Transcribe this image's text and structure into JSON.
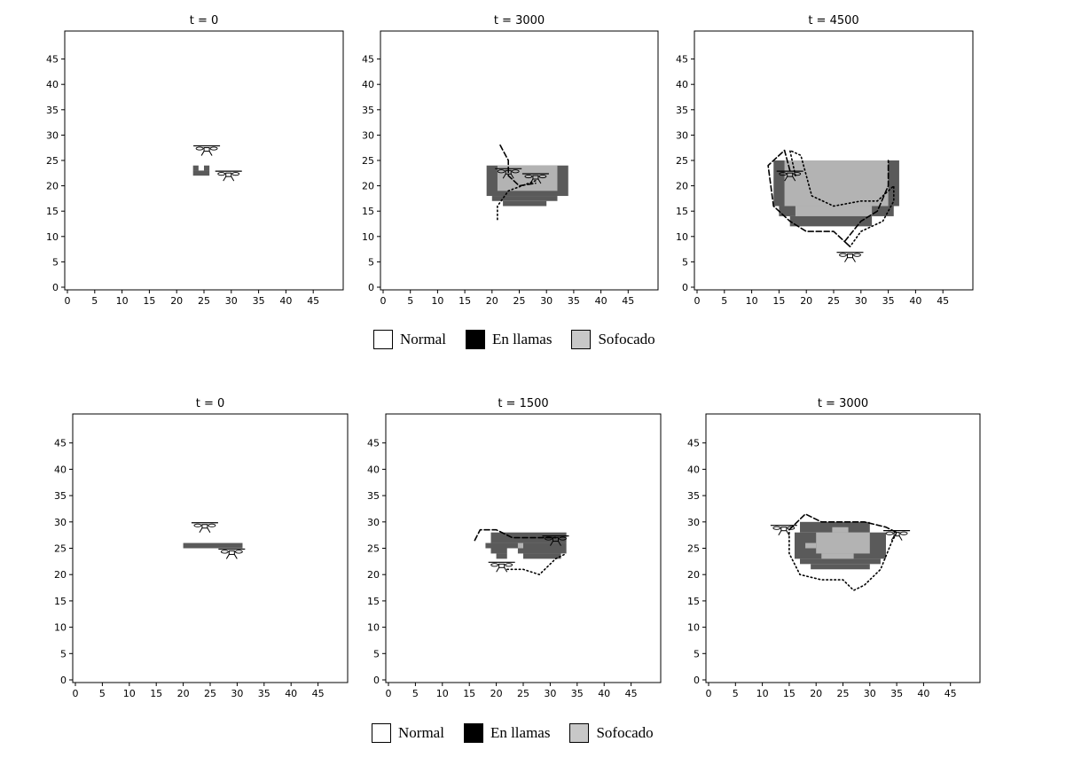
{
  "colors": {
    "burning": "#5a5a5a",
    "smothered": "#b3b3b3",
    "normal": "#ffffff",
    "legend_flame": "#000000",
    "legend_smothered": "#c8c8c8"
  },
  "legends": [
    {
      "items": [
        {
          "label": "Normal",
          "key": "normal"
        },
        {
          "label": "En llamas",
          "key": "flame"
        },
        {
          "label": "Sofocado",
          "key": "smothered"
        }
      ]
    },
    {
      "items": [
        {
          "label": "Normal",
          "key": "normal"
        },
        {
          "label": "En llamas",
          "key": "flame"
        },
        {
          "label": "Sofocado",
          "key": "smothered"
        }
      ]
    }
  ],
  "chart_data": [
    {
      "type": "heatmap",
      "title": "t = 0",
      "xlim": [
        0,
        50
      ],
      "ylim": [
        0,
        50
      ],
      "xticks": [
        0,
        5,
        10,
        15,
        20,
        25,
        30,
        35,
        40,
        45
      ],
      "yticks": [
        0,
        5,
        10,
        15,
        20,
        25,
        30,
        35,
        40,
        45
      ],
      "burning_rects": [
        [
          23,
          22,
          3,
          1
        ],
        [
          23,
          23,
          1,
          1
        ],
        [
          25,
          23,
          1,
          1
        ]
      ],
      "smothered_rects": [],
      "drones": [
        [
          25.5,
          27
        ],
        [
          29.5,
          22
        ]
      ],
      "paths": []
    },
    {
      "type": "heatmap",
      "title": "t = 3000",
      "xlim": [
        0,
        50
      ],
      "ylim": [
        0,
        50
      ],
      "xticks": [
        0,
        5,
        10,
        15,
        20,
        25,
        30,
        35,
        40,
        45
      ],
      "yticks": [
        0,
        5,
        10,
        15,
        20,
        25,
        30,
        35,
        40,
        45
      ],
      "burning_rects": [
        [
          19,
          18,
          15,
          6
        ],
        [
          20,
          17,
          12,
          1
        ],
        [
          22,
          16,
          8,
          1
        ]
      ],
      "smothered_rects": [
        [
          21,
          19,
          11,
          5
        ]
      ],
      "drones": [
        [
          23,
          22.5
        ],
        [
          28,
          21.5
        ]
      ],
      "paths": [
        {
          "style": "dashed",
          "points": [
            [
              21.5,
              28
            ],
            [
              23,
              25
            ],
            [
              23,
              22
            ],
            [
              25,
              20
            ],
            [
              28,
              20.5
            ]
          ]
        },
        {
          "style": "dotted",
          "points": [
            [
              28,
              21
            ],
            [
              23,
              19
            ],
            [
              21,
              16
            ],
            [
              21,
              13
            ]
          ]
        }
      ]
    },
    {
      "type": "heatmap",
      "title": "t = 4500",
      "xlim": [
        0,
        50
      ],
      "ylim": [
        0,
        50
      ],
      "xticks": [
        0,
        5,
        10,
        15,
        20,
        25,
        30,
        35,
        40,
        45
      ],
      "yticks": [
        0,
        5,
        10,
        15,
        20,
        25,
        30,
        35,
        40,
        45
      ],
      "burning_rects": [
        [
          14,
          16,
          23,
          9
        ],
        [
          15,
          14,
          21,
          2
        ],
        [
          17,
          12,
          15,
          2
        ]
      ],
      "smothered_rects": [
        [
          16,
          16,
          19,
          9
        ],
        [
          18,
          14,
          14,
          2
        ]
      ],
      "drones": [
        [
          17,
          22
        ],
        [
          28,
          6
        ]
      ],
      "paths": [
        {
          "style": "dashed",
          "points": [
            [
              17,
              23
            ],
            [
              16,
              27
            ],
            [
              13,
              24
            ],
            [
              14,
              16
            ],
            [
              17,
              13
            ],
            [
              20,
              11
            ],
            [
              25,
              11
            ],
            [
              28,
              8
            ],
            [
              27,
              9
            ],
            [
              30,
              13
            ],
            [
              33,
              15
            ],
            [
              35,
              20
            ],
            [
              35,
              25
            ]
          ]
        },
        {
          "style": "dotted",
          "points": [
            [
              18,
              22
            ],
            [
              17,
              27
            ],
            [
              19,
              26
            ],
            [
              20,
              22
            ],
            [
              21,
              18
            ],
            [
              25,
              16
            ],
            [
              30,
              17
            ],
            [
              33,
              17
            ],
            [
              36,
              20
            ],
            [
              36,
              17
            ],
            [
              34,
              13
            ],
            [
              30,
              11
            ],
            [
              28,
              8
            ]
          ]
        }
      ]
    },
    {
      "type": "heatmap",
      "title": "t = 0",
      "xlim": [
        0,
        50
      ],
      "ylim": [
        0,
        50
      ],
      "xticks": [
        0,
        5,
        10,
        15,
        20,
        25,
        30,
        35,
        40,
        45
      ],
      "yticks": [
        0,
        5,
        10,
        15,
        20,
        25,
        30,
        35,
        40,
        45
      ],
      "burning_rects": [
        [
          20,
          25,
          11,
          1
        ]
      ],
      "smothered_rects": [],
      "drones": [
        [
          24,
          29
        ],
        [
          29,
          24
        ]
      ],
      "paths": []
    },
    {
      "type": "heatmap",
      "title": "t = 1500",
      "xlim": [
        0,
        50
      ],
      "ylim": [
        0,
        50
      ],
      "xticks": [
        0,
        5,
        10,
        15,
        20,
        25,
        30,
        35,
        40,
        45
      ],
      "yticks": [
        0,
        5,
        10,
        15,
        20,
        25,
        30,
        35,
        40,
        45
      ],
      "burning_rects": [
        [
          19,
          26,
          14,
          2
        ],
        [
          18,
          25,
          15,
          1
        ],
        [
          19,
          24,
          3,
          1
        ],
        [
          24,
          24,
          9,
          1
        ],
        [
          20,
          23,
          2,
          1
        ],
        [
          25,
          23,
          7,
          1
        ]
      ],
      "smothered_rects": [
        [
          24,
          25,
          1,
          1
        ]
      ],
      "drones": [
        [
          21,
          21.5
        ],
        [
          31,
          26.5
        ]
      ],
      "paths": [
        {
          "style": "dashed",
          "points": [
            [
              16,
              26.5
            ],
            [
              17,
              28.5
            ],
            [
              20,
              28.5
            ],
            [
              23,
              27
            ],
            [
              28,
              27
            ],
            [
              31,
              27
            ]
          ]
        },
        {
          "style": "dotted",
          "points": [
            [
              22,
              21
            ],
            [
              25,
              21
            ],
            [
              28,
              20
            ],
            [
              29,
              21
            ],
            [
              31,
              23
            ],
            [
              33,
              24
            ]
          ]
        }
      ]
    },
    {
      "type": "heatmap",
      "title": "t = 3000",
      "xlim": [
        0,
        50
      ],
      "ylim": [
        0,
        50
      ],
      "xticks": [
        0,
        5,
        10,
        15,
        20,
        25,
        30,
        35,
        40,
        45
      ],
      "yticks": [
        0,
        5,
        10,
        15,
        20,
        25,
        30,
        35,
        40,
        45
      ],
      "burning_rects": [
        [
          17,
          28,
          13,
          2
        ],
        [
          16,
          23,
          17,
          5
        ],
        [
          17,
          22,
          15,
          1
        ],
        [
          19,
          21,
          11,
          1
        ]
      ],
      "smothered_rects": [
        [
          20,
          24,
          10,
          4
        ],
        [
          18,
          25,
          2,
          1
        ],
        [
          21,
          23,
          6,
          1
        ],
        [
          23,
          28,
          3,
          1
        ]
      ],
      "drones": [
        [
          14,
          28.5
        ],
        [
          35,
          27.5
        ]
      ],
      "paths": [
        {
          "style": "dashed",
          "points": [
            [
              15,
              28.5
            ],
            [
              18,
              31.5
            ],
            [
              21,
              30
            ],
            [
              25,
              30
            ],
            [
              29,
              30
            ],
            [
              33,
              29
            ],
            [
              35,
              28
            ]
          ]
        },
        {
          "style": "dotted",
          "points": [
            [
              15,
              28
            ],
            [
              15,
              24
            ],
            [
              17,
              20
            ],
            [
              21,
              19
            ],
            [
              25,
              19
            ],
            [
              27,
              17
            ],
            [
              29,
              18
            ],
            [
              32,
              21
            ],
            [
              34,
              26
            ],
            [
              35,
              28
            ]
          ]
        }
      ]
    }
  ]
}
